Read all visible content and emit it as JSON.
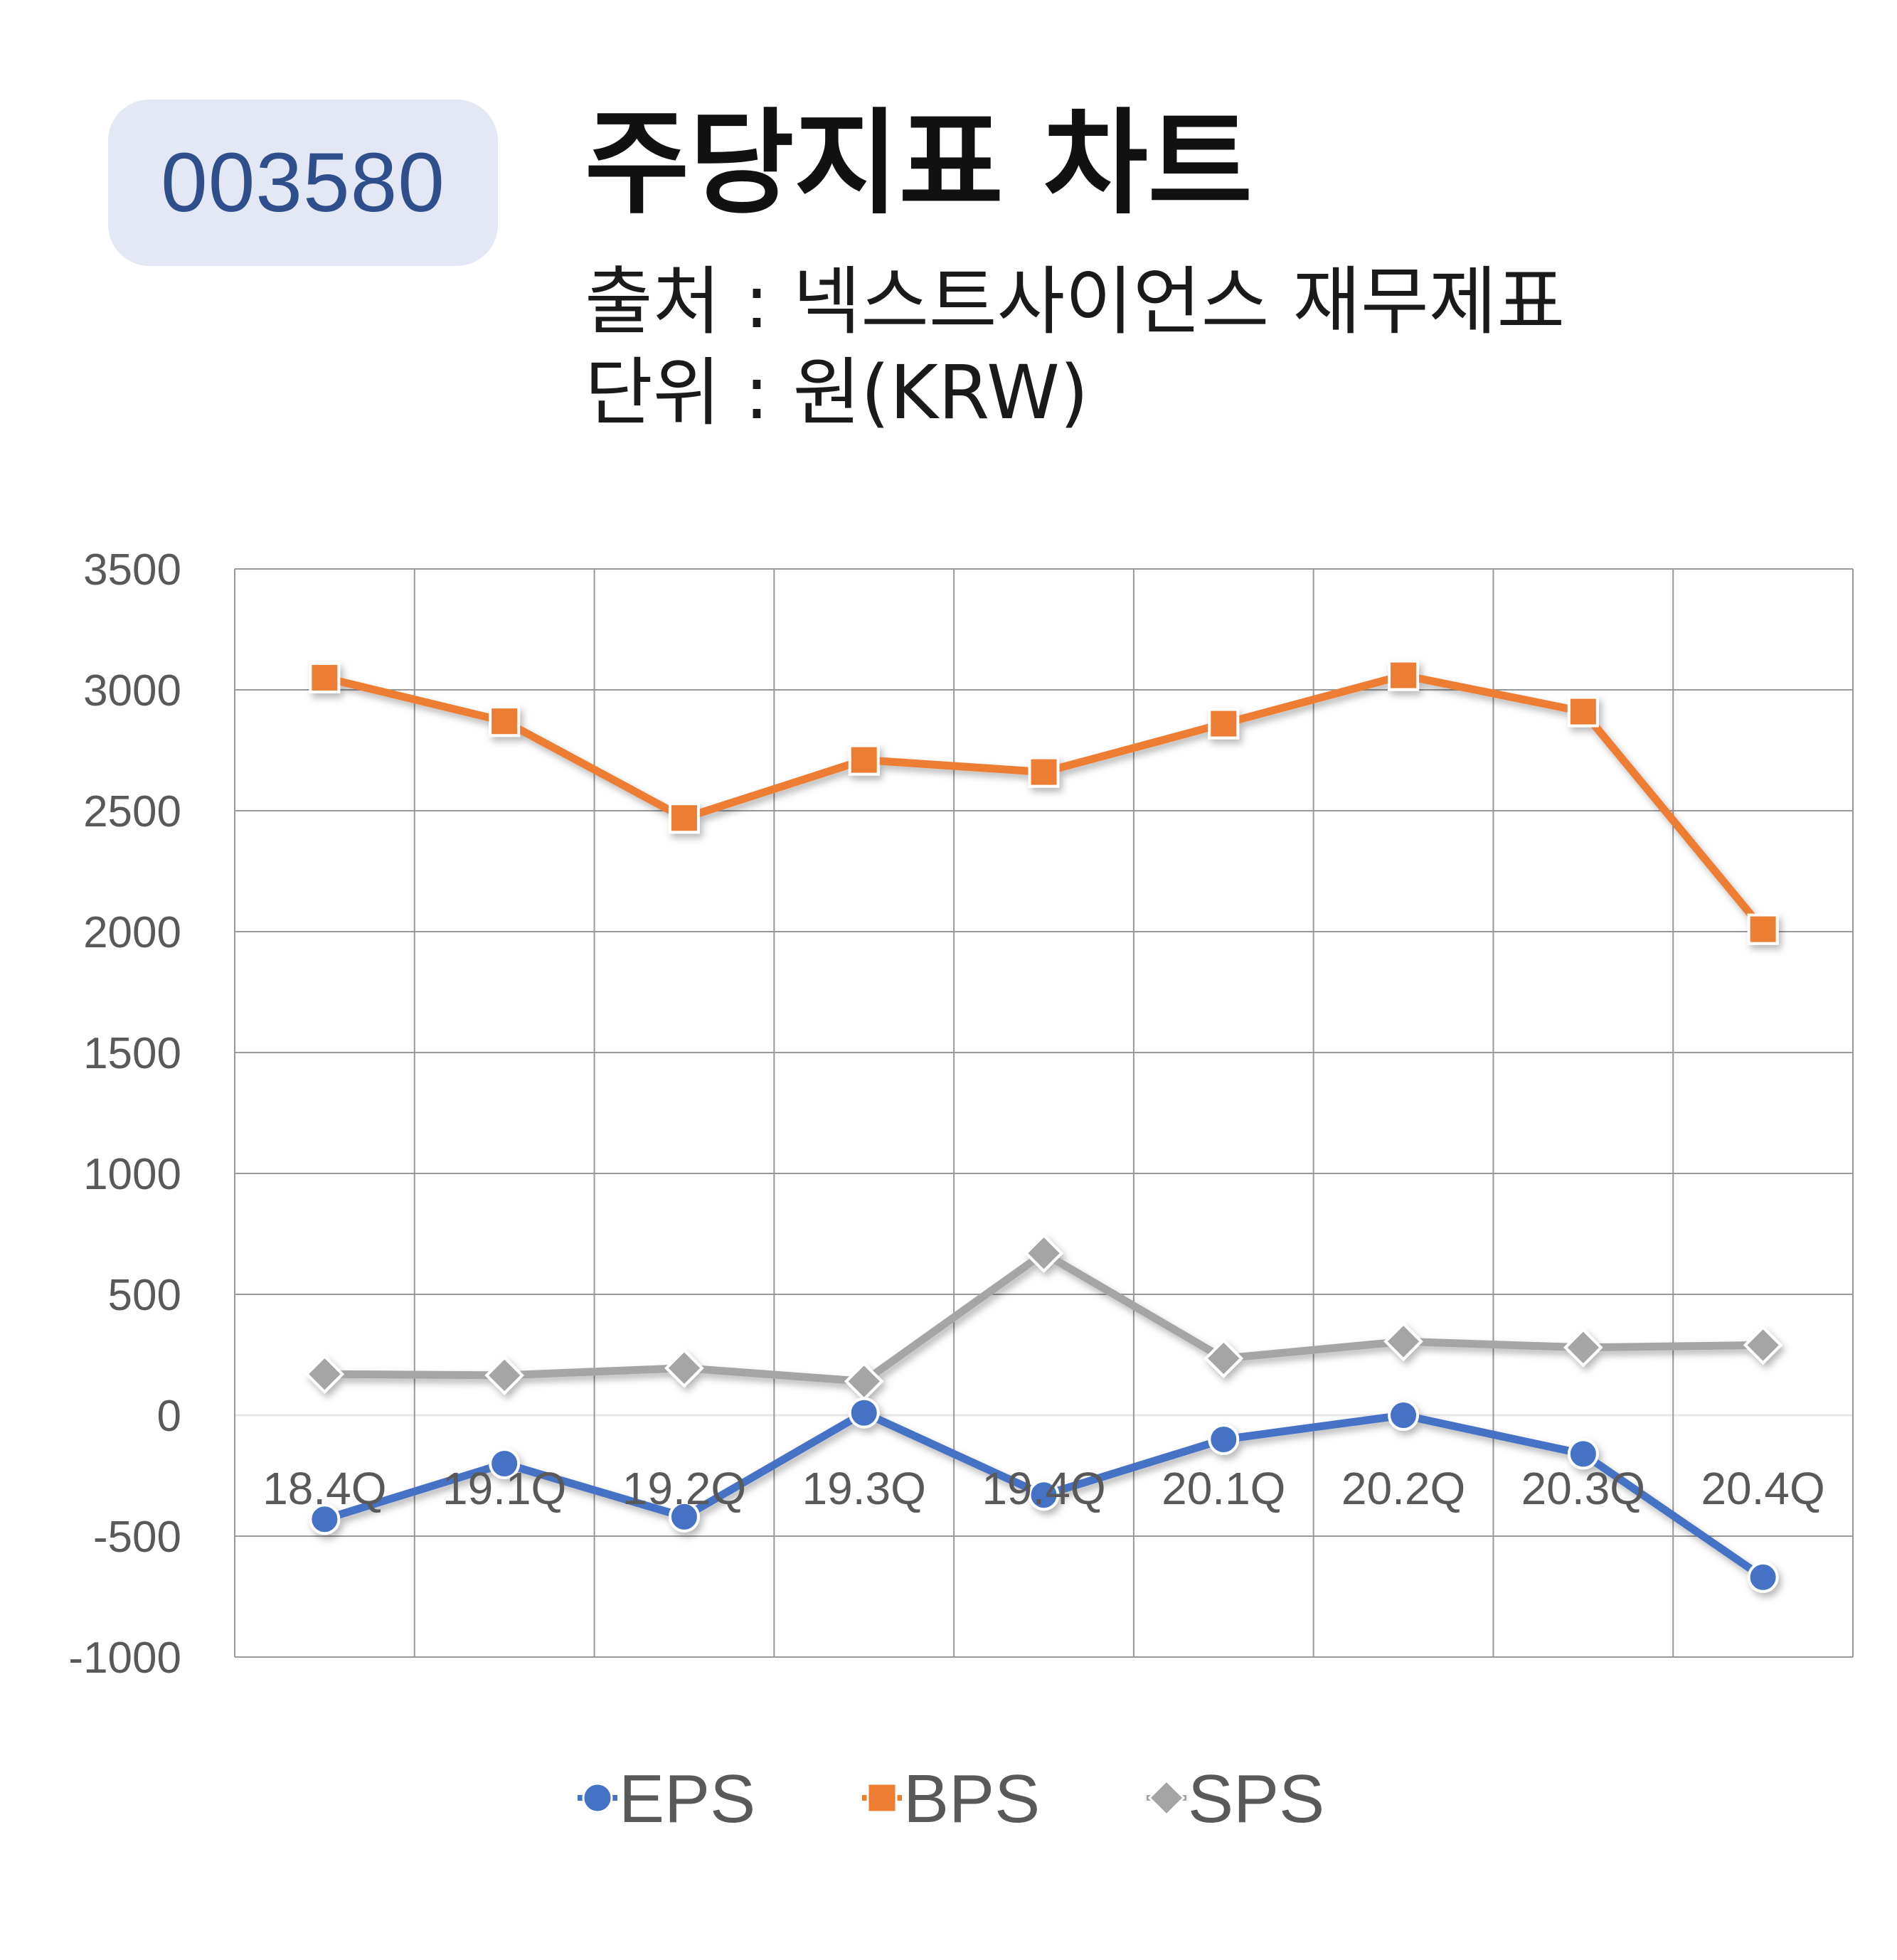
{
  "ticker": "003580",
  "title": "주당지표 차트",
  "source": "출처 : 넥스트사이언스 재무제표",
  "unit": "단위 : 원(KRW)",
  "colors": {
    "EPS": "#4472c4",
    "BPS": "#ed7d31",
    "SPS": "#a5a5a5"
  },
  "chart_data": {
    "type": "line",
    "categories": [
      "18.4Q",
      "19.1Q",
      "19.2Q",
      "19.3Q",
      "19.4Q",
      "20.1Q",
      "20.2Q",
      "20.3Q",
      "20.4Q"
    ],
    "series": [
      {
        "name": "EPS",
        "marker": "circle",
        "values": [
          -430,
          -200,
          -420,
          10,
          -330,
          -100,
          0,
          -160,
          -670
        ]
      },
      {
        "name": "BPS",
        "marker": "square",
        "values": [
          3050,
          2870,
          2470,
          2710,
          2660,
          2860,
          3060,
          2910,
          2010
        ]
      },
      {
        "name": "SPS",
        "marker": "diamond",
        "values": [
          170,
          165,
          195,
          140,
          670,
          235,
          305,
          280,
          290
        ]
      }
    ],
    "yticks": [
      "3500",
      "3000",
      "2500",
      "2000",
      "1500",
      "1000",
      "500",
      "0",
      "-500",
      "-1000"
    ],
    "ylim": [
      -1000,
      3500
    ],
    "grid": true,
    "legend_position": "bottom"
  }
}
